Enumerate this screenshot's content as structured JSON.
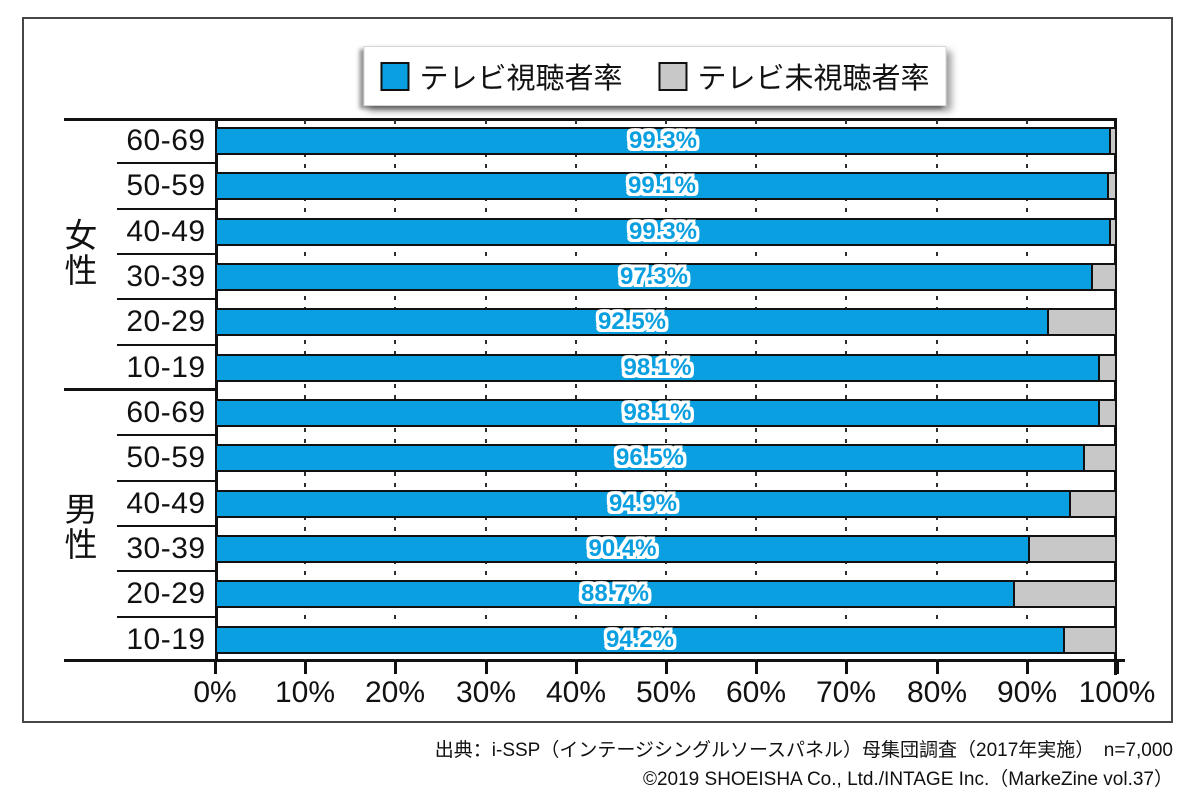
{
  "legend": [
    {
      "label": "テレビ視聴者率",
      "color": "#0a9fe0"
    },
    {
      "label": "テレビ未視聴者率",
      "color": "#c8c8c8"
    }
  ],
  "chart_data": {
    "type": "bar",
    "orientation": "horizontal",
    "stacked": true,
    "series": [
      {
        "name": "テレビ視聴者率",
        "color": "#0a9fe0"
      },
      {
        "name": "テレビ未視聴者率",
        "color": "#c8c8c8"
      }
    ],
    "groups": [
      {
        "label": "女性",
        "rows": [
          {
            "age": "60-69",
            "viewer_pct": 99.3,
            "non_viewer_pct": 0.7,
            "label": "99.3%"
          },
          {
            "age": "50-59",
            "viewer_pct": 99.1,
            "non_viewer_pct": 0.9,
            "label": "99.1%"
          },
          {
            "age": "40-49",
            "viewer_pct": 99.3,
            "non_viewer_pct": 0.7,
            "label": "99.3%"
          },
          {
            "age": "30-39",
            "viewer_pct": 97.3,
            "non_viewer_pct": 2.7,
            "label": "97.3%"
          },
          {
            "age": "20-29",
            "viewer_pct": 92.5,
            "non_viewer_pct": 7.5,
            "label": "92.5%"
          },
          {
            "age": "10-19",
            "viewer_pct": 98.1,
            "non_viewer_pct": 1.9,
            "label": "98.1%"
          }
        ]
      },
      {
        "label": "男性",
        "rows": [
          {
            "age": "60-69",
            "viewer_pct": 98.1,
            "non_viewer_pct": 1.9,
            "label": "98.1%"
          },
          {
            "age": "50-59",
            "viewer_pct": 96.5,
            "non_viewer_pct": 3.5,
            "label": "96.5%"
          },
          {
            "age": "40-49",
            "viewer_pct": 94.9,
            "non_viewer_pct": 5.1,
            "label": "94.9%"
          },
          {
            "age": "30-39",
            "viewer_pct": 90.4,
            "non_viewer_pct": 9.6,
            "label": "90.4%"
          },
          {
            "age": "20-29",
            "viewer_pct": 88.7,
            "non_viewer_pct": 11.3,
            "label": "88.7%"
          },
          {
            "age": "10-19",
            "viewer_pct": 94.2,
            "non_viewer_pct": 5.8,
            "label": "94.2%"
          }
        ]
      }
    ],
    "x_ticks": [
      "0%",
      "10%",
      "20%",
      "30%",
      "40%",
      "50%",
      "60%",
      "70%",
      "80%",
      "90%",
      "100%"
    ],
    "xlim": [
      0,
      100
    ],
    "grid": "dashed vertical gridlines every 10%, solid line at 100%",
    "legend_position": "top-center"
  },
  "colors": {
    "viewer_blue": "#0a9fe0",
    "non_viewer_gray": "#c8c8c8",
    "line_black": "#111111",
    "frame_border": "#474747"
  },
  "footer": {
    "line1": "出典：i-SSP（インテージシングルソースパネル）母集団調査（2017年実施）　n=7,000",
    "line2": "©2019 SHOEISHA Co., Ltd./INTAGE Inc.（MarkeZine vol.37）"
  }
}
